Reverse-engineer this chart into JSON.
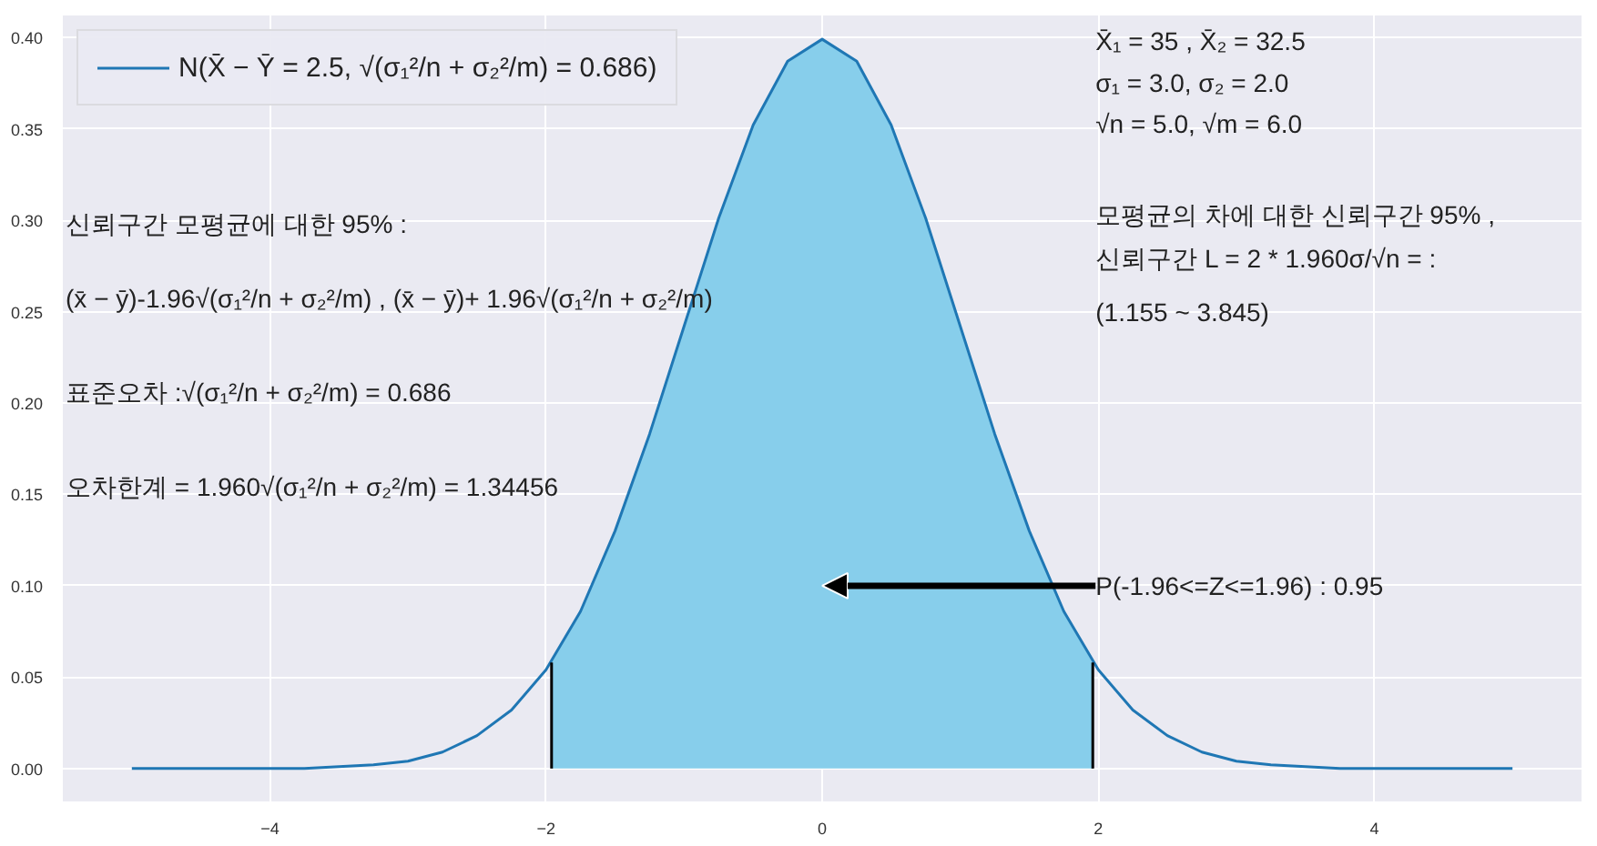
{
  "chart_data": {
    "type": "line",
    "xlim": [
      -5.5,
      5.5
    ],
    "ylim": [
      -0.018,
      0.412
    ],
    "xticks": [
      -4,
      -2,
      0,
      2,
      4
    ],
    "yticks": [
      {
        "value": 0,
        "label": "0.00"
      },
      {
        "value": 0.05,
        "label": "0.05"
      },
      {
        "value": 0.1,
        "label": "0.10"
      },
      {
        "value": 0.15,
        "label": "0.15"
      },
      {
        "value": 0.2,
        "label": "0.20"
      },
      {
        "value": 0.25,
        "label": "0.25"
      },
      {
        "value": 0.3,
        "label": "0.30"
      },
      {
        "value": 0.35,
        "label": "0.35"
      },
      {
        "value": 0.4,
        "label": "0.40"
      }
    ],
    "grid": true,
    "legend": "top left",
    "series": [
      {
        "type": "area",
        "color": "#87ceeb",
        "x": [
          -1.96,
          -1.75,
          -1.5,
          -1.25,
          -1,
          -0.75,
          -0.5,
          -0.25,
          0,
          0.25,
          0.5,
          0.75,
          1,
          1.25,
          1.5,
          1.75,
          1.96
        ],
        "values": [
          0.058,
          0.086,
          0.13,
          0.183,
          0.242,
          0.301,
          0.352,
          0.387,
          0.399,
          0.387,
          0.352,
          0.301,
          0.242,
          0.183,
          0.13,
          0.086,
          0.058
        ]
      },
      {
        "name": "N(X̄ − Ȳ = 2.5, √(σ₁²/n + σ₂²/m) = 0.686)",
        "color": "#1f77b4",
        "x": [
          -5,
          -4.75,
          -4.5,
          -4.25,
          -4,
          -3.75,
          -3.5,
          -3.25,
          -3,
          -2.75,
          -2.5,
          -2.25,
          -2,
          -1.75,
          -1.5,
          -1.25,
          -1,
          -0.75,
          -0.5,
          -0.25,
          0,
          0.25,
          0.5,
          0.75,
          1,
          1.25,
          1.5,
          1.75,
          2,
          2.25,
          2.5,
          2.75,
          3,
          3.25,
          3.5,
          3.75,
          4,
          4.25,
          4.5,
          4.75,
          5
        ],
        "values": [
          0,
          0,
          0,
          0,
          0,
          0,
          0.001,
          0.002,
          0.004,
          0.009,
          0.018,
          0.032,
          0.054,
          0.086,
          0.13,
          0.183,
          0.242,
          0.301,
          0.352,
          0.387,
          0.399,
          0.387,
          0.352,
          0.301,
          0.242,
          0.183,
          0.13,
          0.086,
          0.054,
          0.032,
          0.018,
          0.009,
          0.004,
          0.002,
          0.001,
          0,
          0,
          0,
          0,
          0,
          0
        ]
      },
      {
        "type": "line",
        "color": "#000000",
        "x": [
          -1.96,
          -1.96
        ],
        "values": [
          0,
          0.058
        ]
      },
      {
        "type": "line",
        "color": "#000000",
        "x": [
          1.96,
          1.96
        ],
        "values": [
          0,
          0.058
        ]
      }
    ],
    "annotations": [
      "신뢰구간 모평균에 대한 95% :",
      "(x̄ − ȳ)-1.96√(σ₁²/n + σ₂²/m) , (x̄ − ȳ)+ 1.96√(σ₁²/n + σ₂²/m)",
      "표준오차 :√(σ₁²/n + σ₂²/m) = 0.686",
      "오차한계 = 1.960√(σ₁²/n + σ₂²/m) = 1.34456",
      "X̄₁ = 35 , X̄₂ = 32.5",
      "σ₁ = 3.0, σ₂ = 2.0",
      "√n = 5.0, √m = 6.0",
      "모평균의 차에 대한 신뢰구간 95% ,",
      "신뢰구간 L = 2 * 1.960σ/√n = :",
      "(1.155 ~ 3.845)",
      "P(-1.96<=Z<=1.96) : 0.95"
    ]
  }
}
